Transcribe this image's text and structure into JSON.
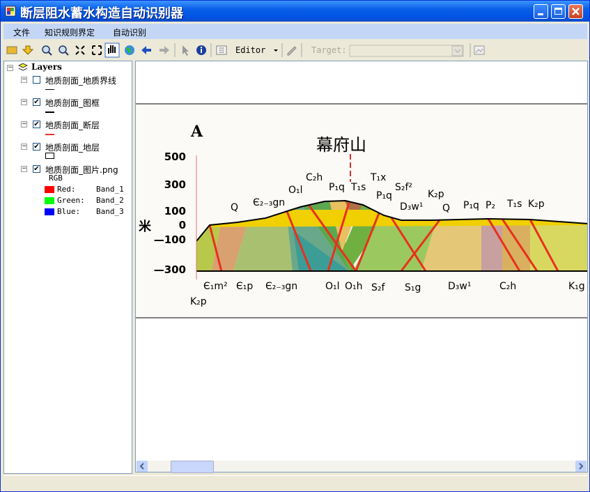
{
  "window": {
    "title": "断层阻水蓄水构造自动识别器"
  },
  "menu": [
    "文件",
    "知识规则界定",
    "自动识别"
  ],
  "toolbar": {
    "editor": "Editor",
    "target": "Target:"
  },
  "toc": {
    "root": "Layers",
    "layers": [
      {
        "name": "地质剖面_地质界线",
        "checked": false
      },
      {
        "name": "地质剖面_图框",
        "checked": true
      },
      {
        "name": "地质剖面_断层",
        "checked": true
      },
      {
        "name": "地质剖面_地层",
        "checked": true
      },
      {
        "name": "地质剖面_图片.png",
        "checked": true
      }
    ],
    "rgb": "RGB",
    "bands": [
      {
        "label": "Red:",
        "band": "Band_1"
      },
      {
        "label": "Green:",
        "band": "Band_2"
      },
      {
        "label": "Blue:",
        "band": "Band_3"
      }
    ]
  },
  "map": {
    "section": "A",
    "mountain": "幕府山",
    "unit": "米",
    "elevations": [
      "500",
      "300",
      "100",
      "0",
      "—100",
      "—300"
    ],
    "top_labels": [
      "Q",
      "Є₂₋₃gn",
      "O₁l",
      "C₂h",
      "P₁q",
      "T₁s",
      "T₁x",
      "P₁q",
      "S₂f²",
      "D₃w¹",
      "K₂p",
      "Q",
      "P₁q",
      "P₂",
      "T₁s",
      "K₂p"
    ],
    "bottom_labels": [
      "Є₁m²",
      "Є₁p",
      "Є₂₋₃gn",
      "O₁l",
      "O₁h",
      "S₂f",
      "S₁g",
      "D₃w¹",
      "C₂h",
      "K₁g",
      "K₂p"
    ]
  }
}
